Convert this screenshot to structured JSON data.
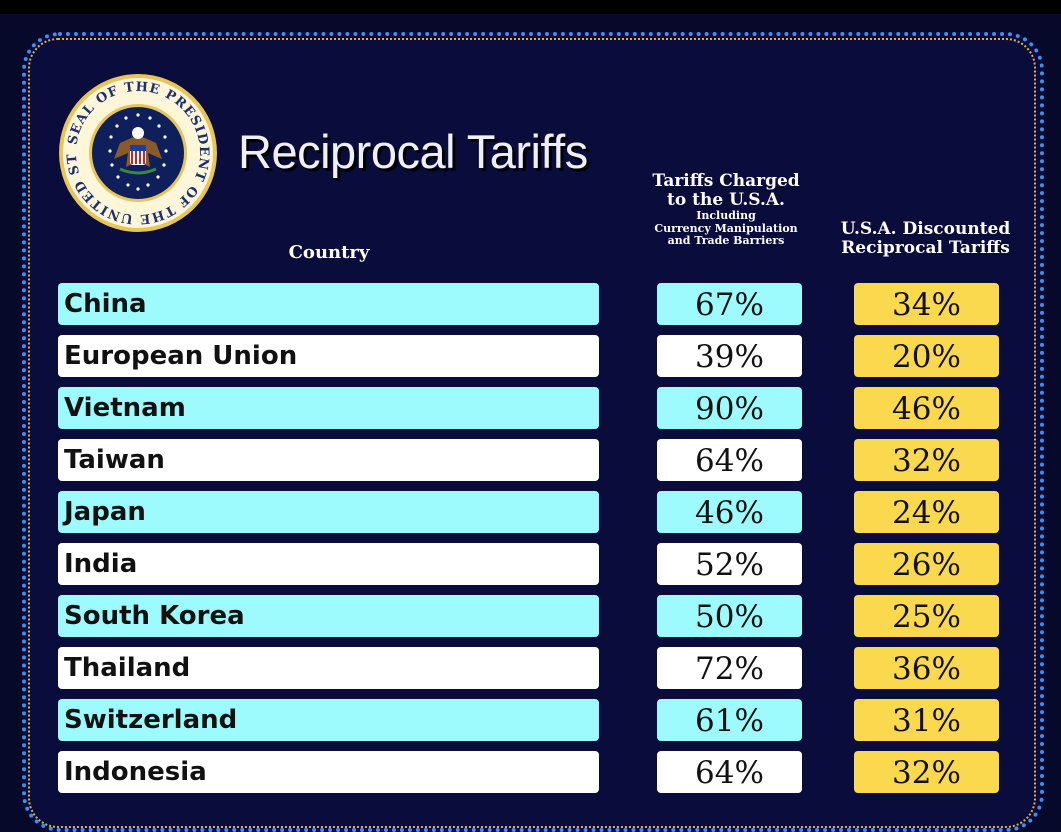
{
  "title": "Reciprocal Tariffs",
  "seal": {
    "text": "SEAL OF THE PRESIDENT OF THE UNITED STATES",
    "colors": {
      "ring": "#1c2f6e",
      "gold": "#e7c55a",
      "inner": "#0f1f5c"
    }
  },
  "headers": {
    "country": "Country",
    "charged_line1": "Tariffs Charged",
    "charged_line2": "to the U.S.A.",
    "charged_note1": "Including",
    "charged_note2": "Currency Manipulation",
    "charged_note3": "and Trade Barriers",
    "discounted_line1": "U.S.A. Discounted",
    "discounted_line2": "Reciprocal Tariffs"
  },
  "colors": {
    "background": "#0a0c3b",
    "row_cyan": "#9efbfd",
    "row_white": "#ffffff",
    "discount_yellow": "#fbd94e"
  },
  "rows": [
    {
      "country": "China",
      "charged": "67%",
      "discounted": "34%"
    },
    {
      "country": "European Union",
      "charged": "39%",
      "discounted": "20%"
    },
    {
      "country": "Vietnam",
      "charged": "90%",
      "discounted": "46%"
    },
    {
      "country": "Taiwan",
      "charged": "64%",
      "discounted": "32%"
    },
    {
      "country": "Japan",
      "charged": "46%",
      "discounted": "24%"
    },
    {
      "country": "India",
      "charged": "52%",
      "discounted": "26%"
    },
    {
      "country": "South Korea",
      "charged": "50%",
      "discounted": "25%"
    },
    {
      "country": "Thailand",
      "charged": "72%",
      "discounted": "36%"
    },
    {
      "country": "Switzerland",
      "charged": "61%",
      "discounted": "31%"
    },
    {
      "country": "Indonesia",
      "charged": "64%",
      "discounted": "32%"
    }
  ]
}
